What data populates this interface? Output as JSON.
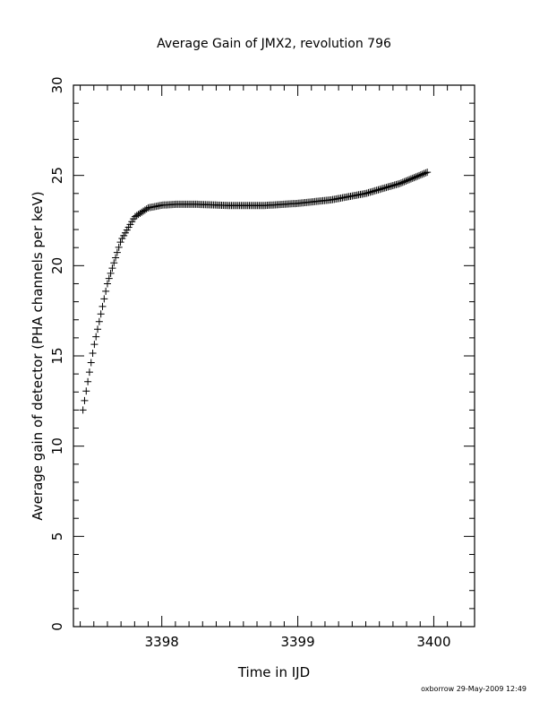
{
  "chart_data": {
    "type": "scatter",
    "title": "Average Gain of JMX2, revolution 796",
    "xlabel": "Time in IJD",
    "ylabel": "Average gain of detector (PHA channels per keV)",
    "xlim": [
      3397.35,
      3400.3
    ],
    "ylim": [
      0,
      30
    ],
    "x_ticks": [
      3398,
      3399,
      3400
    ],
    "x_tick_labels": [
      "3398",
      "3399",
      "3400"
    ],
    "y_ticks": [
      0,
      5,
      10,
      15,
      20,
      25,
      30
    ],
    "y_tick_labels": [
      "0",
      "5",
      "10",
      "15",
      "20",
      "25",
      "30"
    ],
    "marker": "+",
    "marker_color": "#000000",
    "grid": false,
    "x_sample_start": 3397.42,
    "x_sample_end": 3399.96,
    "x_sample_step": 0.012,
    "curve_points": [
      {
        "x": 3397.42,
        "y": 12.0
      },
      {
        "x": 3397.5,
        "y": 15.5
      },
      {
        "x": 3397.6,
        "y": 19.0
      },
      {
        "x": 3397.7,
        "y": 21.4
      },
      {
        "x": 3397.8,
        "y": 22.7
      },
      {
        "x": 3397.9,
        "y": 23.2
      },
      {
        "x": 3398.0,
        "y": 23.35
      },
      {
        "x": 3398.1,
        "y": 23.4
      },
      {
        "x": 3398.25,
        "y": 23.4
      },
      {
        "x": 3398.5,
        "y": 23.33
      },
      {
        "x": 3398.75,
        "y": 23.33
      },
      {
        "x": 3399.0,
        "y": 23.45
      },
      {
        "x": 3399.25,
        "y": 23.65
      },
      {
        "x": 3399.5,
        "y": 24.0
      },
      {
        "x": 3399.75,
        "y": 24.55
      },
      {
        "x": 3399.96,
        "y": 25.2
      }
    ]
  },
  "footer": {
    "credit": "oxborrow 29-May-2009 12:49"
  }
}
